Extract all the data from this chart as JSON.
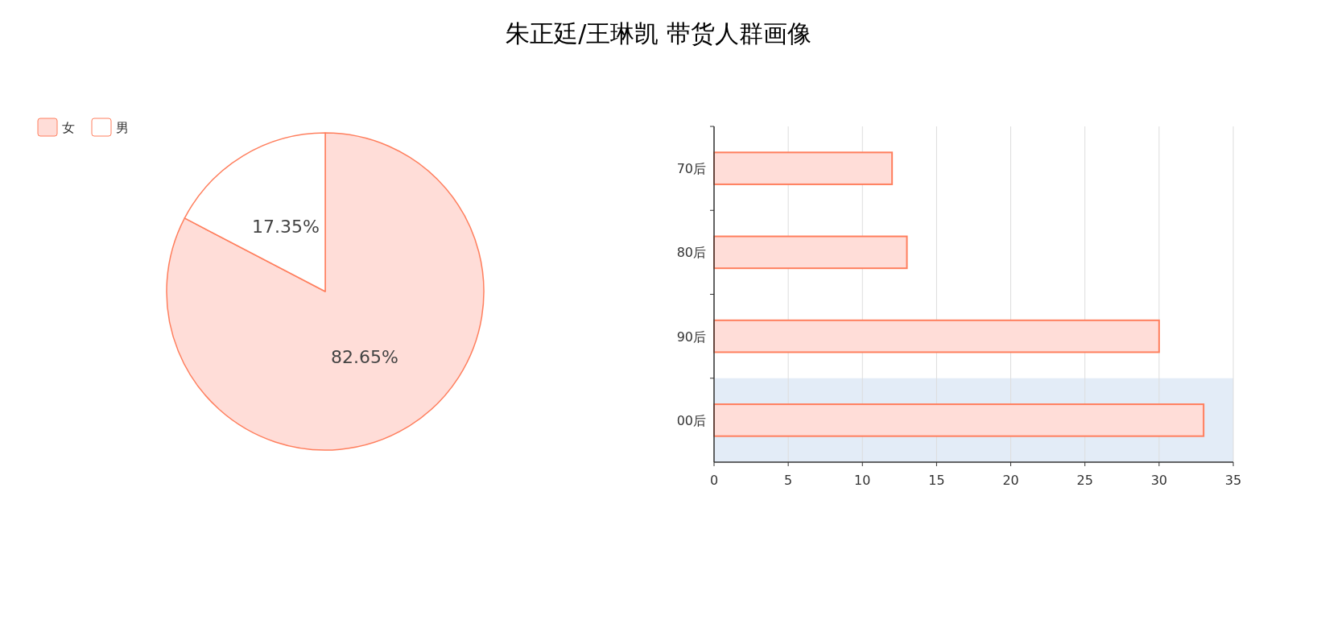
{
  "chart_data": [
    {
      "type": "pie",
      "title": "朱正廷/王琳凯 带货人群画像",
      "categories": [
        "女",
        "男"
      ],
      "values": [
        82.65,
        17.35
      ],
      "colors": [
        "#ffddd8",
        "#ffffff"
      ],
      "value_labels": [
        "82.65%",
        "17.35%"
      ],
      "legend": "top left"
    },
    {
      "type": "bar",
      "orientation": "horizontal",
      "categories": [
        "70后",
        "80后",
        "90后",
        "00后"
      ],
      "values": [
        12,
        13,
        30,
        33
      ],
      "color": "#ffddd8",
      "xlim": [
        0,
        35
      ],
      "xticks": [
        0,
        5,
        10,
        15,
        20,
        25,
        30,
        35
      ],
      "grid": "x",
      "bands": [
        {
          "axis": "y",
          "from": "00后",
          "to": "00后",
          "color": "#e3ecf7"
        }
      ]
    }
  ]
}
